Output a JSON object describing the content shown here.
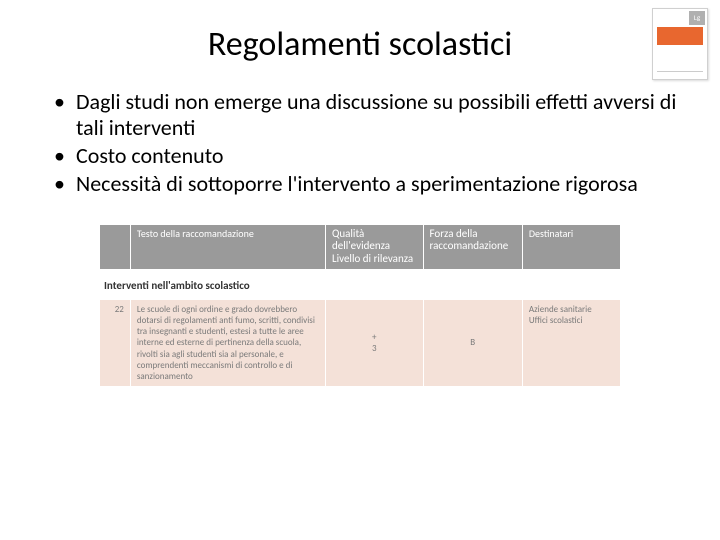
{
  "title": "Regolamenti scolastici",
  "thumb": {
    "tab": "Lg"
  },
  "bullets": [
    "Dagli studi non emerge una discussione su possibili effetti avversi di tali interventi",
    "Costo contenuto",
    "Necessità di sottoporre l'intervento a sperimentazione rigorosa"
  ],
  "table": {
    "headers": {
      "col1": "",
      "col2": "Testo della raccomandazione",
      "col3_line1": "Qualità dell'evidenza",
      "col3_line2": "Livello di rilevanza",
      "col4_line1": "Forza della",
      "col4_line2": "raccomandazione",
      "col5": "Destinatari"
    },
    "section": "Interventi nell'ambito scolastico",
    "row": {
      "num": "22",
      "text": "Le scuole di ogni ordine e grado dovrebbero dotarsi di regolamenti anti fumo, scritti, condivisi tra insegnanti e studenti, estesi a tutte le aree interne ed esterne di pertinenza della scuola, rivolti sia agli studenti sia al personale, e comprendenti meccanismi di controllo e di sanzionamento",
      "quality_line1": "+",
      "quality_line2": "3",
      "strength": "B",
      "recipients_line1": "Aziende sanitarie",
      "recipients_line2": "Uffici scolastici"
    },
    "colors": {
      "header_bg": "#9a9a9a",
      "header_text": "#ffffff",
      "body_bg": "#f4e1d8",
      "body_text": "#7a7a7a"
    }
  }
}
